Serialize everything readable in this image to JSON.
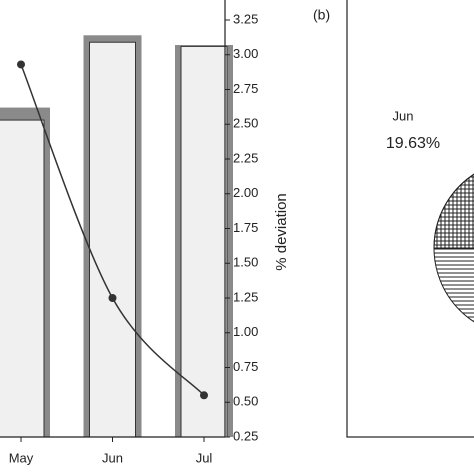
{
  "chart_data": [
    {
      "type": "bar_line",
      "y_axis_label": "% deviation",
      "categories": [
        "May",
        "Jun",
        "Jul"
      ],
      "series": [
        {
          "kind": "bar",
          "color": "#8a8a8a",
          "values": [
            2.62,
            3.14,
            3.07
          ]
        },
        {
          "kind": "bar",
          "color": "#f0f0f0",
          "values": [
            2.53,
            3.09,
            3.06
          ]
        },
        {
          "kind": "line",
          "color": "#333333",
          "values": [
            2.93,
            1.25,
            0.55
          ]
        }
      ],
      "ylim": [
        0.25,
        3.25
      ],
      "yticks": [
        {
          "value": 0.25,
          "label": "0.25"
        },
        {
          "value": 0.5,
          "label": "0.50"
        },
        {
          "value": 0.75,
          "label": "0.75"
        },
        {
          "value": 1,
          "label": "1.00"
        },
        {
          "value": 1.25,
          "label": "1.25"
        },
        {
          "value": 1.5,
          "label": "1.50"
        },
        {
          "value": 1.75,
          "label": "1.75"
        },
        {
          "value": 2,
          "label": "2.00"
        },
        {
          "value": 2.25,
          "label": "2.25"
        },
        {
          "value": 2.5,
          "label": "2.50"
        },
        {
          "value": 2.75,
          "label": "2.75"
        },
        {
          "value": 3,
          "label": "3.00"
        },
        {
          "value": 3.25,
          "label": "3.25"
        }
      ]
    },
    {
      "type": "pie",
      "panel_label": "(b)",
      "categories": [
        "Jun"
      ],
      "values": [
        19.63
      ],
      "value_labels": [
        "19.63%"
      ]
    }
  ]
}
